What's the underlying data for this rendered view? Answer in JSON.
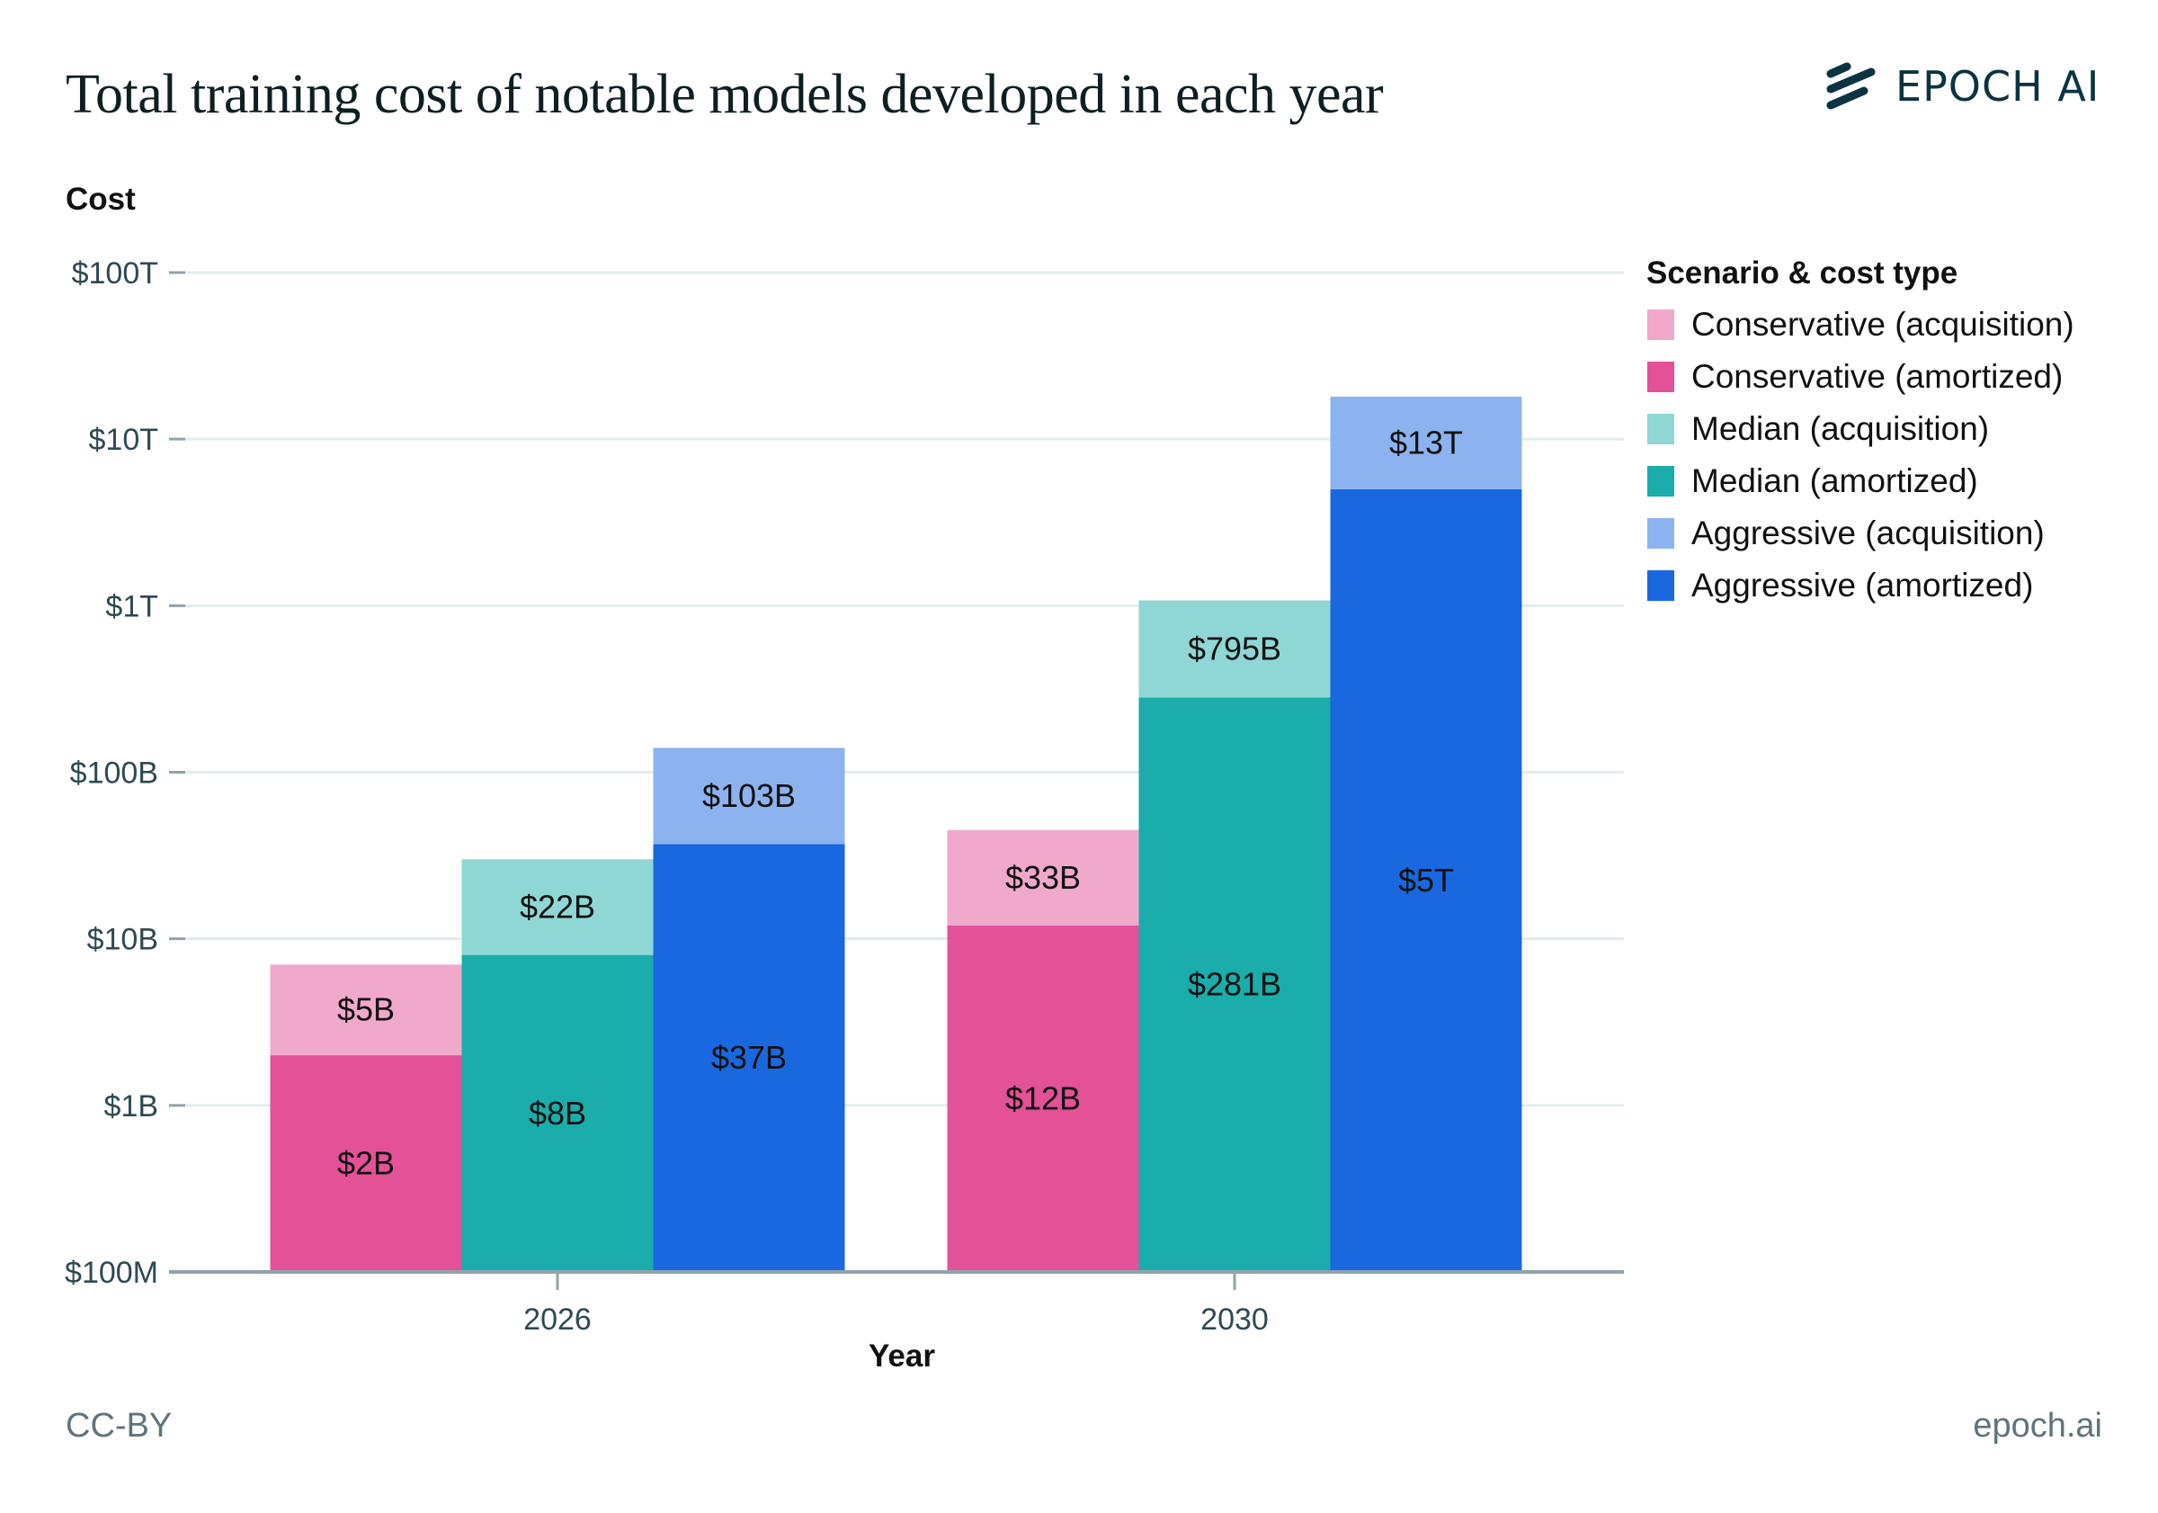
{
  "header": {
    "title": "Total training cost of notable models developed in each year",
    "logo_text": "EPOCH AI",
    "logo_icon": "epoch-stripes-icon"
  },
  "footer": {
    "license": "CC-BY",
    "site": "epoch.ai"
  },
  "colors": {
    "conservative_acquisition": "#f0a8cb",
    "conservative_amortized": "#e35197",
    "median_acquisition": "#8fd7d5",
    "median_amortized": "#1aadab",
    "aggressive_acquisition": "#8cb3ef",
    "aggressive_amortized": "#1a68df",
    "grid": "#e3eced",
    "axis": "#90a3aa",
    "tick_text": "#2d4a53"
  },
  "chart_data": {
    "type": "bar",
    "stacked": true,
    "y_scale": "log",
    "title": "Total training cost of notable models developed in each year",
    "xlabel": "Year",
    "ylabel": "Cost",
    "categories": [
      "2026",
      "2030"
    ],
    "ylim": [
      100000000,
      100000000000000
    ],
    "y_ticks": [
      {
        "value": 100000000000000,
        "label": "$100T"
      },
      {
        "value": 10000000000000,
        "label": "$10T"
      },
      {
        "value": 1000000000000,
        "label": "$1T"
      },
      {
        "value": 100000000000,
        "label": "$100B"
      },
      {
        "value": 10000000000,
        "label": "$10B"
      },
      {
        "value": 1000000000,
        "label": "$1B"
      },
      {
        "value": 100000000,
        "label": "$100M"
      }
    ],
    "grid": true,
    "legend_title": "Scenario & cost type",
    "legend_position": "right",
    "scenarios": [
      "Conservative",
      "Median",
      "Aggressive"
    ],
    "series": [
      {
        "name": "Conservative (acquisition)",
        "scenario": "Conservative",
        "cost_type": "acquisition",
        "color_key": "conservative_acquisition",
        "values": [
          5000000000,
          33000000000
        ],
        "labels": [
          "$5B",
          "$33B"
        ]
      },
      {
        "name": "Conservative (amortized)",
        "scenario": "Conservative",
        "cost_type": "amortized",
        "color_key": "conservative_amortized",
        "values": [
          2000000000,
          12000000000
        ],
        "labels": [
          "$2B",
          "$12B"
        ]
      },
      {
        "name": "Median (acquisition)",
        "scenario": "Median",
        "cost_type": "acquisition",
        "color_key": "median_acquisition",
        "values": [
          22000000000,
          795000000000
        ],
        "labels": [
          "$22B",
          "$795B"
        ]
      },
      {
        "name": "Median (amortized)",
        "scenario": "Median",
        "cost_type": "amortized",
        "color_key": "median_amortized",
        "values": [
          8000000000,
          281000000000
        ],
        "labels": [
          "$8B",
          "$281B"
        ]
      },
      {
        "name": "Aggressive (acquisition)",
        "scenario": "Aggressive",
        "cost_type": "acquisition",
        "color_key": "aggressive_acquisition",
        "values": [
          103000000000,
          13000000000000
        ],
        "labels": [
          "$103B",
          "$13T"
        ]
      },
      {
        "name": "Aggressive (amortized)",
        "scenario": "Aggressive",
        "cost_type": "amortized",
        "color_key": "aggressive_amortized",
        "values": [
          37000000000,
          5000000000000
        ],
        "labels": [
          "$37B",
          "$5T"
        ]
      }
    ]
  }
}
